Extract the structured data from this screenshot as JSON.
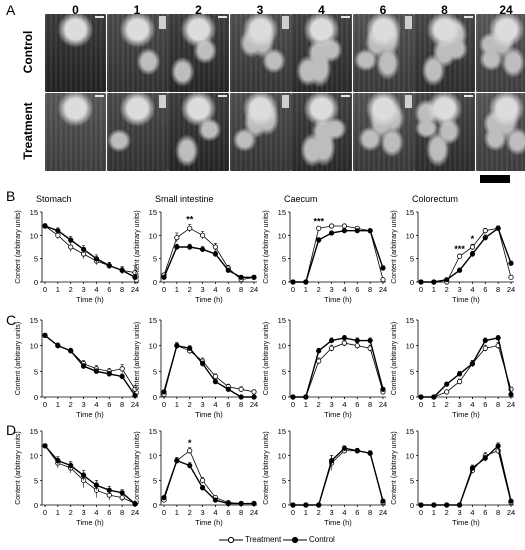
{
  "panel_labels": {
    "A": "A",
    "B": "B",
    "C": "C",
    "D": "D"
  },
  "panel_a": {
    "timepoints": [
      "0",
      "1",
      "2",
      "3",
      "4",
      "6",
      "8",
      "24"
    ],
    "row_labels": [
      "Control",
      "Treatment"
    ]
  },
  "legend": {
    "treatment": "Treatment",
    "control": "Control"
  },
  "colors": {
    "treatment_marker": "#ffffff",
    "control_marker": "#000000",
    "line": "#000000"
  },
  "chart_data": [
    {
      "type": "line",
      "row": "B",
      "title": "Stomach",
      "xlabel": "Time (h)",
      "ylabel": "Content (arbitrary units)",
      "categories": [
        "0",
        "1",
        "2",
        "3",
        "4",
        "6",
        "8",
        "24"
      ],
      "ylim": [
        0,
        15
      ],
      "yticks": [
        "0",
        "5",
        "10",
        "15"
      ],
      "series": [
        {
          "name": "Treatment",
          "values": [
            12,
            10,
            7.5,
            6,
            4.5,
            3.5,
            2.5,
            2
          ],
          "err": [
            0.5,
            0.8,
            1,
            1,
            0.8,
            0.7,
            0.8,
            1.5
          ]
        },
        {
          "name": "Control",
          "values": [
            12,
            11,
            9,
            7,
            5,
            3.5,
            2.5,
            1
          ],
          "err": [
            0.5,
            0.6,
            0.8,
            0.8,
            0.8,
            0.6,
            0.6,
            0.6
          ]
        }
      ],
      "annotations": []
    },
    {
      "type": "line",
      "row": "B",
      "title": "Small intestine",
      "xlabel": "Time (h)",
      "ylabel": "Content (arbitrary units)",
      "categories": [
        "0",
        "1",
        "2",
        "3",
        "4",
        "6",
        "8",
        "24"
      ],
      "ylim": [
        0,
        15
      ],
      "yticks": [
        "0",
        "5",
        "10",
        "15"
      ],
      "series": [
        {
          "name": "Treatment",
          "values": [
            1.5,
            9.5,
            11.5,
            10,
            7.5,
            3,
            0.5,
            1
          ],
          "err": [
            0.3,
            1,
            0.8,
            0.8,
            0.8,
            0.6,
            0.4,
            0.4
          ]
        },
        {
          "name": "Control",
          "values": [
            1,
            7.5,
            7.5,
            7,
            6,
            2.5,
            1,
            1
          ],
          "err": [
            0.3,
            0.6,
            0.6,
            0.6,
            0.6,
            0.5,
            0.4,
            0.4
          ]
        }
      ],
      "annotations": [
        {
          "x": "2",
          "text": "**"
        }
      ]
    },
    {
      "type": "line",
      "row": "B",
      "title": "Caecum",
      "xlabel": "Time (h)",
      "ylabel": "Content (arbitrary units)",
      "categories": [
        "0",
        "1",
        "2",
        "3",
        "4",
        "6",
        "8",
        "24"
      ],
      "ylim": [
        0,
        15
      ],
      "yticks": [
        "0",
        "5",
        "10",
        "15"
      ],
      "series": [
        {
          "name": "Treatment",
          "values": [
            0,
            0,
            11.5,
            12,
            12,
            11.5,
            11,
            0.5
          ],
          "err": [
            0,
            0,
            0.4,
            0.4,
            0.4,
            0.4,
            0.4,
            0.3
          ]
        },
        {
          "name": "Control",
          "values": [
            0,
            0,
            9,
            10.5,
            11,
            11,
            11,
            3
          ],
          "err": [
            0,
            0,
            0.5,
            0.4,
            0.4,
            0.4,
            0.4,
            0.5
          ]
        }
      ],
      "annotations": [
        {
          "x": "2",
          "text": "***"
        }
      ]
    },
    {
      "type": "line",
      "row": "B",
      "title": "Colorectum",
      "xlabel": "Time (h)",
      "ylabel": "Content (arbitrary units)",
      "categories": [
        "0",
        "1",
        "2",
        "3",
        "4",
        "6",
        "8",
        "24"
      ],
      "ylim": [
        0,
        15
      ],
      "yticks": [
        "0",
        "5",
        "10",
        "15"
      ],
      "series": [
        {
          "name": "Treatment",
          "values": [
            0,
            0,
            0,
            5.5,
            7.5,
            11,
            11.5,
            1
          ],
          "err": [
            0,
            0,
            0,
            0.5,
            0.6,
            0.5,
            0.5,
            0.4
          ]
        },
        {
          "name": "Control",
          "values": [
            0,
            0,
            0.5,
            2.5,
            6,
            9.5,
            11.5,
            4
          ],
          "err": [
            0,
            0,
            0.2,
            0.5,
            0.6,
            0.6,
            0.5,
            0.5
          ]
        }
      ],
      "annotations": [
        {
          "x": "3",
          "text": "***"
        },
        {
          "x": "4",
          "text": "*"
        }
      ]
    },
    {
      "type": "line",
      "row": "C",
      "title": "",
      "xlabel": "Time (h)",
      "ylabel": "Content (arbitrary units)",
      "categories": [
        "0",
        "1",
        "2",
        "3",
        "4",
        "6",
        "8",
        "24"
      ],
      "ylim": [
        0,
        15
      ],
      "yticks": [
        "0",
        "5",
        "10",
        "15"
      ],
      "series": [
        {
          "name": "Treatment",
          "values": [
            12,
            10,
            9,
            6.5,
            5.5,
            5,
            5.5,
            1.5
          ],
          "err": [
            0.4,
            0.5,
            0.5,
            0.6,
            0.6,
            0.6,
            0.8,
            0.8
          ]
        },
        {
          "name": "Control",
          "values": [
            12,
            10,
            9,
            6,
            5,
            4.5,
            4,
            0.3
          ],
          "err": [
            0.4,
            0.5,
            0.5,
            0.5,
            0.5,
            0.5,
            0.5,
            0.2
          ]
        }
      ],
      "annotations": []
    },
    {
      "type": "line",
      "row": "C",
      "title": "",
      "xlabel": "Time (h)",
      "ylabel": "Content (arbitrary units)",
      "categories": [
        "0",
        "1",
        "2",
        "3",
        "4",
        "6",
        "8",
        "24"
      ],
      "ylim": [
        0,
        15
      ],
      "yticks": [
        "0",
        "5",
        "10",
        "15"
      ],
      "series": [
        {
          "name": "Treatment",
          "values": [
            0.5,
            10,
            9,
            7,
            4,
            2,
            1.5,
            1
          ],
          "err": [
            0.2,
            0.6,
            0.6,
            0.6,
            0.5,
            0.5,
            0.5,
            0.4
          ]
        },
        {
          "name": "Control",
          "values": [
            1,
            10,
            9.5,
            6.5,
            3,
            1.5,
            0,
            0
          ],
          "err": [
            0.2,
            0.5,
            0.5,
            0.5,
            0.4,
            0.4,
            0.2,
            0.2
          ]
        }
      ],
      "annotations": []
    },
    {
      "type": "line",
      "row": "C",
      "title": "",
      "xlabel": "Time (h)",
      "ylabel": "Content (arbitrary units)",
      "categories": [
        "0",
        "1",
        "2",
        "3",
        "4",
        "6",
        "8",
        "24"
      ],
      "ylim": [
        0,
        15
      ],
      "yticks": [
        "0",
        "5",
        "10",
        "15"
      ],
      "series": [
        {
          "name": "Treatment",
          "values": [
            0,
            0,
            7,
            9.5,
            10.5,
            10,
            9.5,
            1
          ],
          "err": [
            0,
            0,
            0.6,
            0.6,
            0.6,
            0.6,
            0.6,
            0.4
          ]
        },
        {
          "name": "Control",
          "values": [
            0,
            0,
            9,
            11,
            11.5,
            11,
            11,
            1.5
          ],
          "err": [
            0,
            0,
            0.5,
            0.5,
            0.5,
            0.5,
            0.5,
            0.4
          ]
        }
      ],
      "annotations": []
    },
    {
      "type": "line",
      "row": "C",
      "title": "",
      "xlabel": "Time (h)",
      "ylabel": "Content (arbitrary units)",
      "categories": [
        "0",
        "1",
        "2",
        "3",
        "4",
        "6",
        "8",
        "24"
      ],
      "ylim": [
        0,
        15
      ],
      "yticks": [
        "0",
        "5",
        "10",
        "15"
      ],
      "series": [
        {
          "name": "Treatment",
          "values": [
            0,
            0,
            1,
            3,
            6.5,
            9.5,
            10,
            1.5
          ],
          "err": [
            0,
            0,
            0.3,
            0.5,
            0.6,
            0.6,
            0.6,
            0.4
          ]
        },
        {
          "name": "Control",
          "values": [
            0,
            0,
            2.5,
            4.5,
            6.5,
            11,
            11.5,
            0.5
          ],
          "err": [
            0,
            0,
            0.4,
            0.5,
            0.6,
            0.5,
            0.5,
            0.3
          ]
        }
      ],
      "annotations": []
    },
    {
      "type": "line",
      "row": "D",
      "title": "",
      "xlabel": "Time (h)",
      "ylabel": "Content (arbitrary units)",
      "categories": [
        "0",
        "1",
        "2",
        "3",
        "4",
        "6",
        "8",
        "24"
      ],
      "ylim": [
        0,
        15
      ],
      "yticks": [
        "0",
        "5",
        "10",
        "15"
      ],
      "series": [
        {
          "name": "Treatment",
          "values": [
            12,
            8.5,
            7.5,
            5,
            3,
            2,
            1.5,
            0.3
          ],
          "err": [
            0.4,
            1,
            1,
            1.5,
            1.5,
            1,
            0.8,
            0.3
          ]
        },
        {
          "name": "Control",
          "values": [
            12,
            9,
            8,
            6,
            4,
            3,
            2.5,
            0.2
          ],
          "err": [
            0.4,
            0.8,
            0.8,
            1,
            1,
            0.8,
            0.6,
            0.2
          ]
        }
      ],
      "annotations": []
    },
    {
      "type": "line",
      "row": "D",
      "title": "",
      "xlabel": "Time (h)",
      "ylabel": "Content (arbitrary units)",
      "categories": [
        "0",
        "1",
        "2",
        "3",
        "4",
        "6",
        "8",
        "24"
      ],
      "ylim": [
        0,
        15
      ],
      "yticks": [
        "0",
        "5",
        "10",
        "15"
      ],
      "series": [
        {
          "name": "Treatment",
          "values": [
            1,
            9,
            11,
            5,
            1.5,
            0.5,
            0.3,
            0.3
          ],
          "err": [
            0.3,
            0.6,
            0.6,
            0.6,
            0.4,
            0.2,
            0.2,
            0.2
          ]
        },
        {
          "name": "Control",
          "values": [
            1.5,
            9,
            8,
            3.5,
            1,
            0.3,
            0.3,
            0.3
          ],
          "err": [
            0.3,
            0.6,
            0.6,
            0.5,
            0.3,
            0.2,
            0.2,
            0.2
          ]
        }
      ],
      "annotations": [
        {
          "x": "2",
          "text": "*"
        }
      ]
    },
    {
      "type": "line",
      "row": "D",
      "title": "",
      "xlabel": "Time (h)",
      "ylabel": "Content (arbitrary units)",
      "categories": [
        "0",
        "1",
        "2",
        "3",
        "4",
        "6",
        "8",
        "24"
      ],
      "ylim": [
        0,
        15
      ],
      "yticks": [
        "0",
        "5",
        "10",
        "15"
      ],
      "series": [
        {
          "name": "Treatment",
          "values": [
            0,
            0,
            0,
            8.5,
            11,
            11,
            10.5,
            0.5
          ],
          "err": [
            0,
            0,
            0,
            1.5,
            0.5,
            0.5,
            0.5,
            0.3
          ]
        },
        {
          "name": "Control",
          "values": [
            0,
            0,
            0,
            9,
            11.5,
            11,
            10.5,
            0.8
          ],
          "err": [
            0,
            0,
            0,
            1,
            0.5,
            0.5,
            0.5,
            0.3
          ]
        }
      ],
      "annotations": []
    },
    {
      "type": "line",
      "row": "D",
      "title": "",
      "xlabel": "Time (h)",
      "ylabel": "Content (arbitrary units)",
      "categories": [
        "0",
        "1",
        "2",
        "3",
        "4",
        "6",
        "8",
        "24"
      ],
      "ylim": [
        0,
        15
      ],
      "yticks": [
        "0",
        "5",
        "10",
        "15"
      ],
      "series": [
        {
          "name": "Treatment",
          "values": [
            0,
            0,
            0,
            0,
            7,
            10,
            11,
            0.5
          ],
          "err": [
            0,
            0,
            0,
            0,
            0.6,
            0.6,
            0.6,
            0.3
          ]
        },
        {
          "name": "Control",
          "values": [
            0,
            0,
            0,
            0,
            7.5,
            9.5,
            12,
            0.8
          ],
          "err": [
            0,
            0,
            0,
            0,
            0.6,
            0.6,
            0.6,
            0.3
          ]
        }
      ],
      "annotations": []
    }
  ]
}
